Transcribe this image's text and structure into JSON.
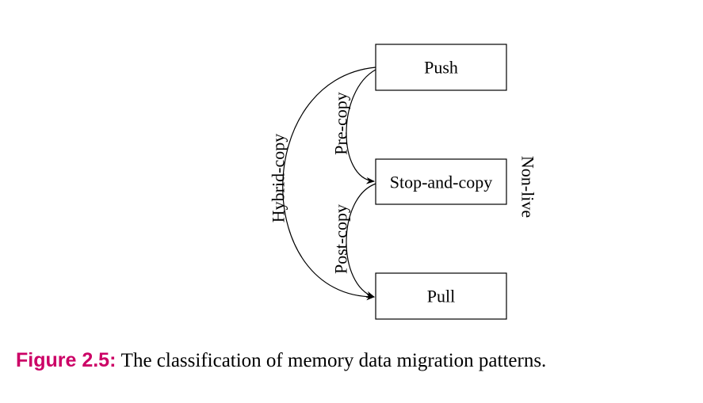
{
  "diagram": {
    "nodes": {
      "push": "Push",
      "stop_and_copy": "Stop-and-copy",
      "pull": "Pull"
    },
    "edges": {
      "pre_copy": "Pre-copy",
      "post_copy": "Post-copy",
      "hybrid_copy": "Hybrid-copy",
      "non_live": "Non-live"
    }
  },
  "caption": {
    "label": "Figure 2.5:",
    "text": "The classification of memory data migration patterns."
  },
  "colors": {
    "caption_label": "#cc0066",
    "stroke": "#000000"
  }
}
